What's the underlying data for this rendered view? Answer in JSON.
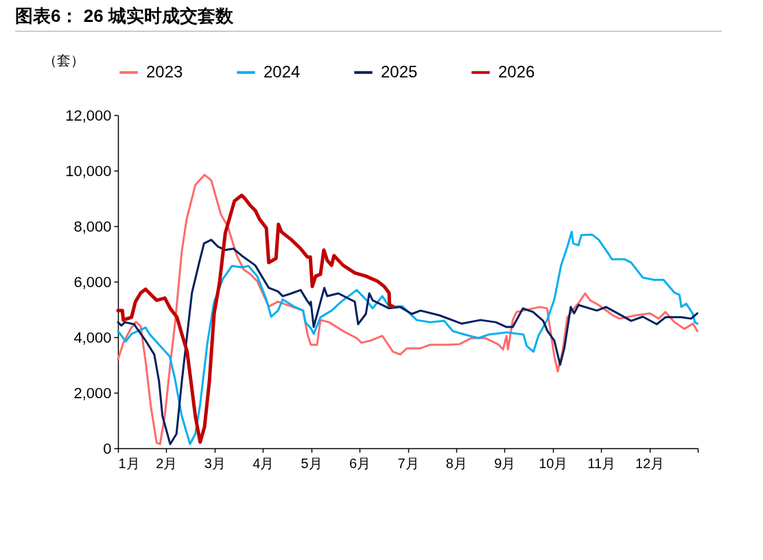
{
  "chart_data": {
    "type": "line",
    "title": "图表6：  26 城实时成交套数",
    "ylabel": "（套）",
    "xlim": [
      1,
      13
    ],
    "xticks": [
      {
        "value": 1,
        "label": "1月"
      },
      {
        "value": 2,
        "label": "2月"
      },
      {
        "value": 3,
        "label": "3月"
      },
      {
        "value": 4,
        "label": "4月"
      },
      {
        "value": 5,
        "label": "5月"
      },
      {
        "value": 6,
        "label": "6月"
      },
      {
        "value": 7,
        "label": "7月"
      },
      {
        "value": 8,
        "label": "8月"
      },
      {
        "value": 9,
        "label": "9月"
      },
      {
        "value": 10,
        "label": "10月"
      },
      {
        "value": 11,
        "label": "11月"
      },
      {
        "value": 12,
        "label": "12月"
      },
      {
        "value": 13,
        "label": null
      }
    ],
    "ylim": [
      0,
      12000
    ],
    "yticks": [
      0,
      {
        "value": 2000,
        "label": "2,000"
      },
      {
        "value": 4000,
        "label": "4,000"
      },
      {
        "value": 6000,
        "label": "6,000"
      },
      {
        "value": 8000,
        "label": "8,000"
      },
      {
        "value": 10000,
        "label": "10,000"
      },
      {
        "value": 12000,
        "label": "12,000"
      }
    ],
    "grid": false,
    "legend": "top",
    "marker": "none",
    "line_style": "solid",
    "series": [
      {
        "name": "2023",
        "color": "#ff6b6b",
        "x": [
          1.0,
          1.11,
          1.26,
          1.37,
          1.47,
          1.58,
          1.68,
          1.8,
          1.87,
          1.97,
          2.08,
          2.18,
          2.32,
          2.42,
          2.6,
          2.79,
          2.93,
          3.13,
          3.27,
          3.46,
          3.6,
          3.74,
          3.88,
          4.12,
          4.31,
          4.83,
          4.92,
          4.99,
          5.12,
          5.19,
          5.37,
          5.66,
          5.94,
          6.04,
          6.23,
          6.47,
          6.69,
          6.84,
          6.98,
          7.26,
          7.46,
          7.83,
          8.07,
          8.31,
          8.6,
          8.88,
          8.97,
          9.04,
          9.07,
          9.17,
          9.25,
          9.73,
          9.88,
          9.96,
          10.03,
          10.1,
          10.2,
          10.3,
          10.44,
          10.53,
          10.67,
          10.77,
          10.95,
          11.24,
          11.38,
          11.72,
          12.01,
          12.19,
          12.33,
          12.52,
          12.72,
          12.9,
          12.99
        ],
        "values": [
          3200,
          3800,
          4300,
          4550,
          4400,
          3000,
          1500,
          200,
          150,
          1200,
          3000,
          4500,
          7090,
          8250,
          9480,
          9850,
          9650,
          8420,
          8000,
          6940,
          6440,
          6270,
          6020,
          5110,
          5280,
          4960,
          4120,
          3730,
          3730,
          4620,
          4540,
          4220,
          3970,
          3800,
          3880,
          4050,
          3480,
          3380,
          3600,
          3600,
          3730,
          3730,
          3750,
          3970,
          3970,
          3730,
          3560,
          4050,
          3560,
          4620,
          4910,
          5090,
          5040,
          4120,
          3310,
          2770,
          3480,
          4720,
          5040,
          5230,
          5580,
          5330,
          5160,
          4790,
          4670,
          4790,
          4860,
          4670,
          4910,
          4540,
          4300,
          4490,
          4220
        ]
      },
      {
        "name": "2024",
        "color": "#00b0f0",
        "x": [
          1.0,
          1.16,
          1.28,
          1.57,
          1.65,
          1.85,
          2.07,
          2.18,
          2.32,
          2.49,
          2.6,
          2.7,
          2.85,
          2.99,
          3.17,
          3.36,
          3.56,
          3.7,
          3.88,
          4.07,
          4.17,
          4.31,
          4.41,
          4.64,
          4.83,
          4.88,
          5.0,
          5.05,
          5.19,
          5.42,
          5.62,
          5.94,
          6.13,
          6.27,
          6.47,
          6.61,
          6.89,
          7.18,
          7.46,
          7.75,
          7.93,
          8.17,
          8.46,
          8.68,
          9.02,
          9.07,
          9.39,
          9.46,
          9.6,
          9.7,
          9.88,
          10.03,
          10.17,
          10.3,
          10.39,
          10.42,
          10.53,
          10.59,
          10.81,
          10.95,
          11.15,
          11.22,
          11.48,
          11.62,
          11.86,
          12.09,
          12.29,
          12.52,
          12.62,
          12.66,
          12.76,
          12.89,
          12.94,
          12.99
        ],
        "values": [
          4220,
          3850,
          4120,
          4350,
          4120,
          3730,
          3310,
          2490,
          1160,
          150,
          520,
          1580,
          3800,
          5280,
          6100,
          6570,
          6520,
          6570,
          6200,
          5360,
          4740,
          4960,
          5360,
          5110,
          4960,
          4540,
          4300,
          4120,
          4720,
          4960,
          5280,
          5700,
          5360,
          5040,
          5480,
          5110,
          5110,
          4620,
          4540,
          4590,
          4220,
          4100,
          3970,
          4100,
          4170,
          4170,
          4100,
          3680,
          3480,
          4050,
          4620,
          5360,
          6590,
          7260,
          7800,
          7380,
          7310,
          7680,
          7700,
          7510,
          7010,
          6810,
          6810,
          6690,
          6150,
          6070,
          6070,
          5600,
          5530,
          5090,
          5210,
          4860,
          4540,
          4490
        ]
      },
      {
        "name": "2025",
        "color": "#002060",
        "x": [
          1.0,
          1.07,
          1.14,
          1.33,
          1.57,
          1.75,
          1.85,
          1.92,
          2.08,
          2.21,
          2.32,
          2.53,
          2.68,
          2.78,
          2.93,
          3.07,
          3.22,
          3.39,
          3.56,
          3.84,
          4.12,
          4.31,
          4.41,
          4.59,
          4.78,
          4.91,
          5.0,
          4.99,
          5.05,
          5.27,
          5.33,
          5.56,
          5.9,
          5.97,
          6.13,
          6.2,
          6.27,
          6.61,
          6.84,
          7.08,
          7.26,
          7.65,
          8.11,
          8.5,
          8.82,
          9.04,
          9.17,
          9.38,
          9.59,
          9.8,
          9.89,
          10.03,
          10.15,
          10.24,
          10.37,
          10.44,
          10.53,
          10.91,
          11.1,
          11.34,
          11.62,
          11.86,
          12.15,
          12.33,
          12.66,
          12.86,
          12.99
        ],
        "values": [
          4540,
          4420,
          4540,
          4470,
          3880,
          3380,
          2400,
          1160,
          150,
          520,
          2400,
          5600,
          6690,
          7380,
          7510,
          7260,
          7140,
          7190,
          6940,
          6590,
          5780,
          5650,
          5480,
          5580,
          5700,
          5330,
          5110,
          5280,
          4370,
          5780,
          5480,
          5580,
          5280,
          4470,
          4840,
          5580,
          5330,
          5040,
          5090,
          4840,
          4960,
          4790,
          4490,
          4620,
          4540,
          4370,
          4370,
          5040,
          4910,
          4590,
          4220,
          3880,
          3010,
          3630,
          5090,
          4860,
          5160,
          4960,
          5090,
          4860,
          4590,
          4740,
          4470,
          4720,
          4720,
          4670,
          4860
        ]
      },
      {
        "name": "2026",
        "color": "#c00000",
        "x": [
          1.0,
          1.09,
          1.11,
          1.28,
          1.36,
          1.47,
          1.57,
          1.8,
          1.97,
          2.08,
          2.22,
          2.32,
          2.43,
          2.51,
          2.6,
          2.7,
          2.79,
          2.89,
          2.99,
          3.1,
          3.22,
          3.41,
          3.56,
          3.63,
          3.74,
          3.84,
          3.93,
          4.07,
          4.12,
          4.27,
          4.32,
          4.38,
          4.59,
          4.78,
          4.92,
          4.98,
          5.02,
          5.09,
          5.19,
          5.26,
          5.33,
          5.42,
          5.47,
          5.66,
          5.9,
          6.13,
          6.37,
          6.51,
          6.61,
          6.62,
          6.69
        ],
        "values": [
          4960,
          4960,
          4620,
          4720,
          5280,
          5600,
          5730,
          5330,
          5410,
          5040,
          4720,
          4120,
          3480,
          2400,
          1160,
          220,
          770,
          2400,
          4860,
          5950,
          7750,
          8910,
          9110,
          8990,
          8740,
          8570,
          8250,
          7930,
          6690,
          6840,
          8070,
          7800,
          7510,
          7190,
          6890,
          6890,
          5830,
          6200,
          6270,
          7140,
          6770,
          6590,
          6940,
          6590,
          6320,
          6200,
          6020,
          5830,
          5600,
          5160,
          5110
        ]
      }
    ]
  }
}
